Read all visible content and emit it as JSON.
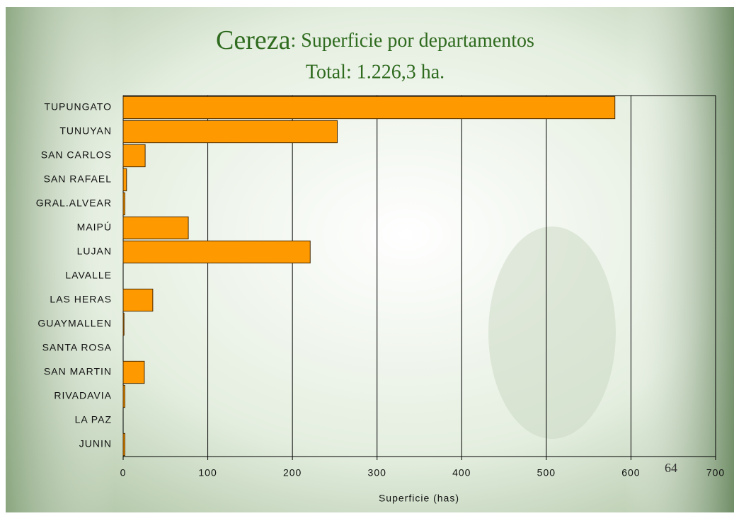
{
  "chart_data": {
    "type": "hbar",
    "title_highlight": "Cereza",
    "title": ": Superficie por departamentos",
    "subtitle": "Total: 1.226,3 ha.",
    "x_label": "Superficie (has)",
    "categories": [
      "TUPUNGATO",
      "TUNUYAN",
      "SAN CARLOS",
      "SAN RAFAEL",
      "GRAL.ALVEAR",
      "MAIPÚ",
      "LUJAN",
      "LAVALLE",
      "LAS HERAS",
      "GUAYMALLEN",
      "SANTA ROSA",
      "SAN MARTIN",
      "RIVADAVIA",
      "LA PAZ",
      "JUNIN"
    ],
    "values": [
      581,
      253,
      26,
      4,
      2,
      77,
      221,
      0,
      35,
      1,
      0,
      25,
      2,
      0,
      2
    ],
    "color": "#ff9900",
    "xlim": [
      0,
      700
    ],
    "xticks": [
      0,
      100,
      200,
      300,
      400,
      500,
      600,
      700
    ],
    "grid": true
  },
  "page_number": "64"
}
